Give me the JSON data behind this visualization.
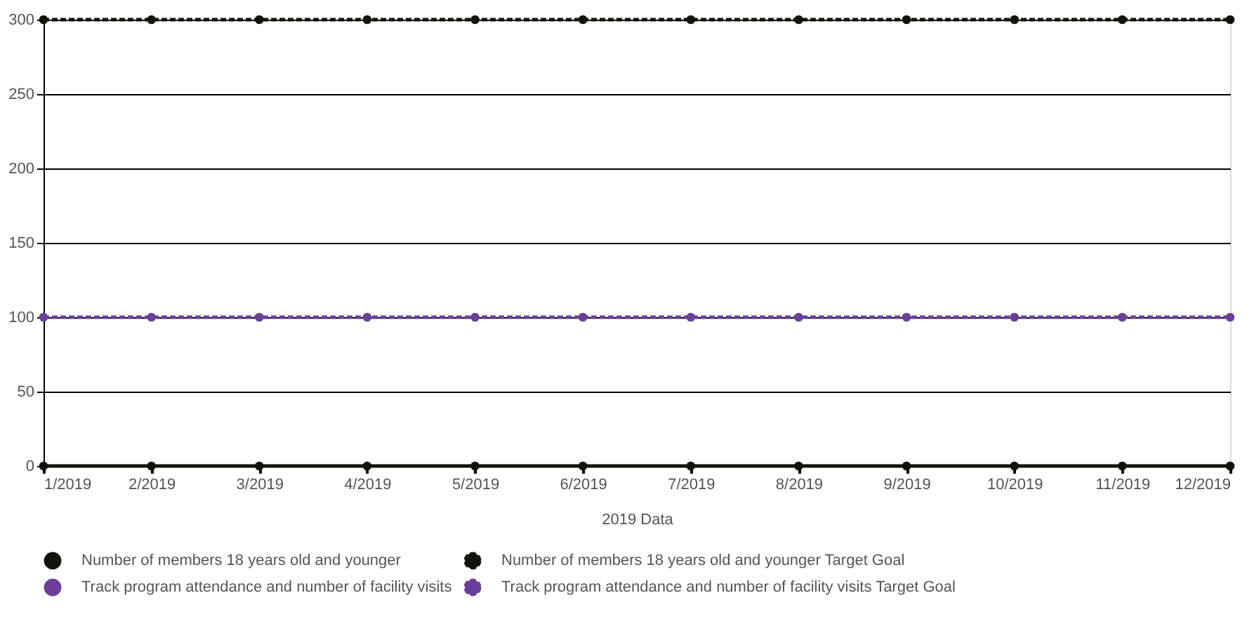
{
  "chart_data": {
    "type": "line",
    "categories": [
      "1/2019",
      "2/2019",
      "3/2019",
      "4/2019",
      "5/2019",
      "6/2019",
      "7/2019",
      "8/2019",
      "9/2019",
      "10/2019",
      "11/2019",
      "12/2019"
    ],
    "xlabel": "2019 Data",
    "ylim": [
      0,
      300
    ],
    "yticks": [
      0,
      50,
      100,
      150,
      200,
      250,
      300
    ],
    "grid": "y",
    "legend": "bottom",
    "marker": "circle",
    "series": [
      {
        "name": "Number of members 18 years old and younger",
        "color": "#13120a",
        "line_style": "solid",
        "values": [
          0,
          0,
          0,
          0,
          0,
          0,
          0,
          0,
          0,
          0,
          0,
          0
        ]
      },
      {
        "name": "Number of members 18 years old and younger Target Goal",
        "color": "#13120a",
        "line_style": "dashed",
        "values": [
          300,
          300,
          300,
          300,
          300,
          300,
          300,
          300,
          300,
          300,
          300,
          300
        ]
      },
      {
        "name": "Track program attendance and number of facility visits",
        "color": "#6b3f98",
        "line_style": "solid",
        "values": [
          null,
          null,
          null,
          null,
          null,
          null,
          null,
          null,
          null,
          null,
          null,
          null
        ]
      },
      {
        "name": "Track program attendance and number of facility visits Target Goal",
        "color": "#6b3f98",
        "line_style": "dashed",
        "values": [
          100,
          100,
          100,
          100,
          100,
          100,
          100,
          100,
          100,
          100,
          100,
          100
        ]
      }
    ]
  }
}
